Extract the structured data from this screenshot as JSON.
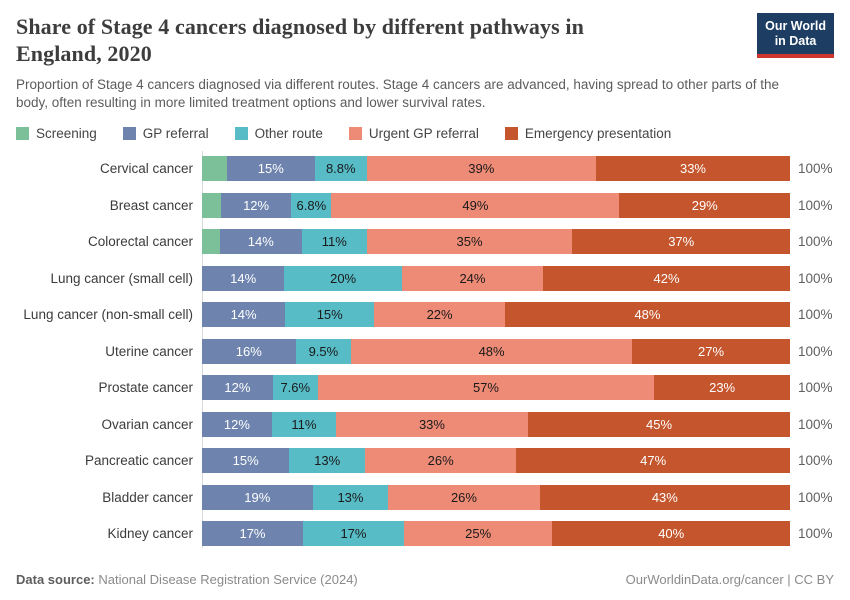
{
  "header": {
    "title_lines": [
      "Share of Stage 4 cancers diagnosed by different pathways in",
      "England, 2020"
    ],
    "subtitle": "Proportion of Stage 4 cancers diagnosed via different routes. Stage 4 cancers are advanced, having spread to other parts of the body, often resulting in more limited treatment options and lower survival rates.",
    "logo": {
      "line1": "Our World",
      "line2": "in Data",
      "bg_color": "#1d3d63",
      "accent_color": "#d0342c"
    }
  },
  "chart_data": {
    "type": "bar",
    "variant": "horizontal-stacked",
    "unit": "%",
    "xlim": [
      0,
      100
    ],
    "legend_position": "top",
    "grid": false,
    "series": [
      {
        "name": "Screening",
        "color": "#7bc098",
        "label_color": "#1a1a1a"
      },
      {
        "name": "GP referral",
        "color": "#6e84ae",
        "label_color": "#ffffff"
      },
      {
        "name": "Other route",
        "color": "#57bcc6",
        "label_color": "#1a1a1a"
      },
      {
        "name": "Urgent GP referral",
        "color": "#ee8b76",
        "label_color": "#1a1a1a"
      },
      {
        "name": "Emergency presentation",
        "color": "#c4552c",
        "label_color": "#ffffff"
      }
    ],
    "categories": [
      "Cervical cancer",
      "Breast cancer",
      "Colorectal cancer",
      "Lung cancer (small cell)",
      "Lung cancer (non-small cell)",
      "Uterine cancer",
      "Prostate cancer",
      "Ovarian cancer",
      "Pancreatic cancer",
      "Bladder cancer",
      "Kidney cancer"
    ],
    "rows": [
      {
        "category": "Cervical cancer",
        "total_label": "100%",
        "segments": [
          {
            "series": "Screening",
            "value": 4.2,
            "label": ""
          },
          {
            "series": "GP referral",
            "value": 15,
            "label": "15%"
          },
          {
            "series": "Other route",
            "value": 8.8,
            "label": "8.8%"
          },
          {
            "series": "Urgent GP referral",
            "value": 39,
            "label": "39%"
          },
          {
            "series": "Emergency presentation",
            "value": 33,
            "label": "33%"
          }
        ]
      },
      {
        "category": "Breast cancer",
        "total_label": "100%",
        "segments": [
          {
            "series": "Screening",
            "value": 3.2,
            "label": ""
          },
          {
            "series": "GP referral",
            "value": 12,
            "label": "12%"
          },
          {
            "series": "Other route",
            "value": 6.8,
            "label": "6.8%"
          },
          {
            "series": "Urgent GP referral",
            "value": 49,
            "label": "49%"
          },
          {
            "series": "Emergency presentation",
            "value": 29,
            "label": "29%"
          }
        ]
      },
      {
        "category": "Colorectal cancer",
        "total_label": "100%",
        "segments": [
          {
            "series": "Screening",
            "value": 3,
            "label": ""
          },
          {
            "series": "GP referral",
            "value": 14,
            "label": "14%"
          },
          {
            "series": "Other route",
            "value": 11,
            "label": "11%"
          },
          {
            "series": "Urgent GP referral",
            "value": 35,
            "label": "35%"
          },
          {
            "series": "Emergency presentation",
            "value": 37,
            "label": "37%"
          }
        ]
      },
      {
        "category": "Lung cancer (small cell)",
        "total_label": "100%",
        "segments": [
          {
            "series": "GP referral",
            "value": 14,
            "label": "14%"
          },
          {
            "series": "Other route",
            "value": 20,
            "label": "20%"
          },
          {
            "series": "Urgent GP referral",
            "value": 24,
            "label": "24%"
          },
          {
            "series": "Emergency presentation",
            "value": 42,
            "label": "42%"
          }
        ]
      },
      {
        "category": "Lung cancer (non-small cell)",
        "total_label": "100%",
        "segments": [
          {
            "series": "GP referral",
            "value": 14,
            "label": "14%"
          },
          {
            "series": "Other route",
            "value": 15,
            "label": "15%"
          },
          {
            "series": "Urgent GP referral",
            "value": 22,
            "label": "22%"
          },
          {
            "series": "Emergency presentation",
            "value": 48,
            "label": "48%"
          }
        ]
      },
      {
        "category": "Uterine cancer",
        "total_label": "100%",
        "segments": [
          {
            "series": "GP referral",
            "value": 16,
            "label": "16%"
          },
          {
            "series": "Other route",
            "value": 9.5,
            "label": "9.5%"
          },
          {
            "series": "Urgent GP referral",
            "value": 48,
            "label": "48%"
          },
          {
            "series": "Emergency presentation",
            "value": 27,
            "label": "27%"
          }
        ]
      },
      {
        "category": "Prostate cancer",
        "total_label": "100%",
        "segments": [
          {
            "series": "GP referral",
            "value": 12,
            "label": "12%"
          },
          {
            "series": "Other route",
            "value": 7.6,
            "label": "7.6%"
          },
          {
            "series": "Urgent GP referral",
            "value": 57,
            "label": "57%"
          },
          {
            "series": "Emergency presentation",
            "value": 23,
            "label": "23%"
          }
        ]
      },
      {
        "category": "Ovarian cancer",
        "total_label": "100%",
        "segments": [
          {
            "series": "GP referral",
            "value": 12,
            "label": "12%"
          },
          {
            "series": "Other route",
            "value": 11,
            "label": "11%"
          },
          {
            "series": "Urgent GP referral",
            "value": 33,
            "label": "33%"
          },
          {
            "series": "Emergency presentation",
            "value": 45,
            "label": "45%"
          }
        ]
      },
      {
        "category": "Pancreatic cancer",
        "total_label": "100%",
        "segments": [
          {
            "series": "GP referral",
            "value": 15,
            "label": "15%"
          },
          {
            "series": "Other route",
            "value": 13,
            "label": "13%"
          },
          {
            "series": "Urgent GP referral",
            "value": 26,
            "label": "26%"
          },
          {
            "series": "Emergency presentation",
            "value": 47,
            "label": "47%"
          }
        ]
      },
      {
        "category": "Bladder cancer",
        "total_label": "100%",
        "segments": [
          {
            "series": "GP referral",
            "value": 19,
            "label": "19%"
          },
          {
            "series": "Other route",
            "value": 13,
            "label": "13%"
          },
          {
            "series": "Urgent GP referral",
            "value": 26,
            "label": "26%"
          },
          {
            "series": "Emergency presentation",
            "value": 43,
            "label": "43%"
          }
        ]
      },
      {
        "category": "Kidney cancer",
        "total_label": "100%",
        "segments": [
          {
            "series": "GP referral",
            "value": 17,
            "label": "17%"
          },
          {
            "series": "Other route",
            "value": 17,
            "label": "17%"
          },
          {
            "series": "Urgent GP referral",
            "value": 25,
            "label": "25%"
          },
          {
            "series": "Emergency presentation",
            "value": 40,
            "label": "40%"
          }
        ]
      }
    ]
  },
  "footer": {
    "source_prefix": "Data source:",
    "source_text": " National Disease Registration Service (2024)",
    "credit": "OurWorldinData.org/cancer | CC BY"
  }
}
